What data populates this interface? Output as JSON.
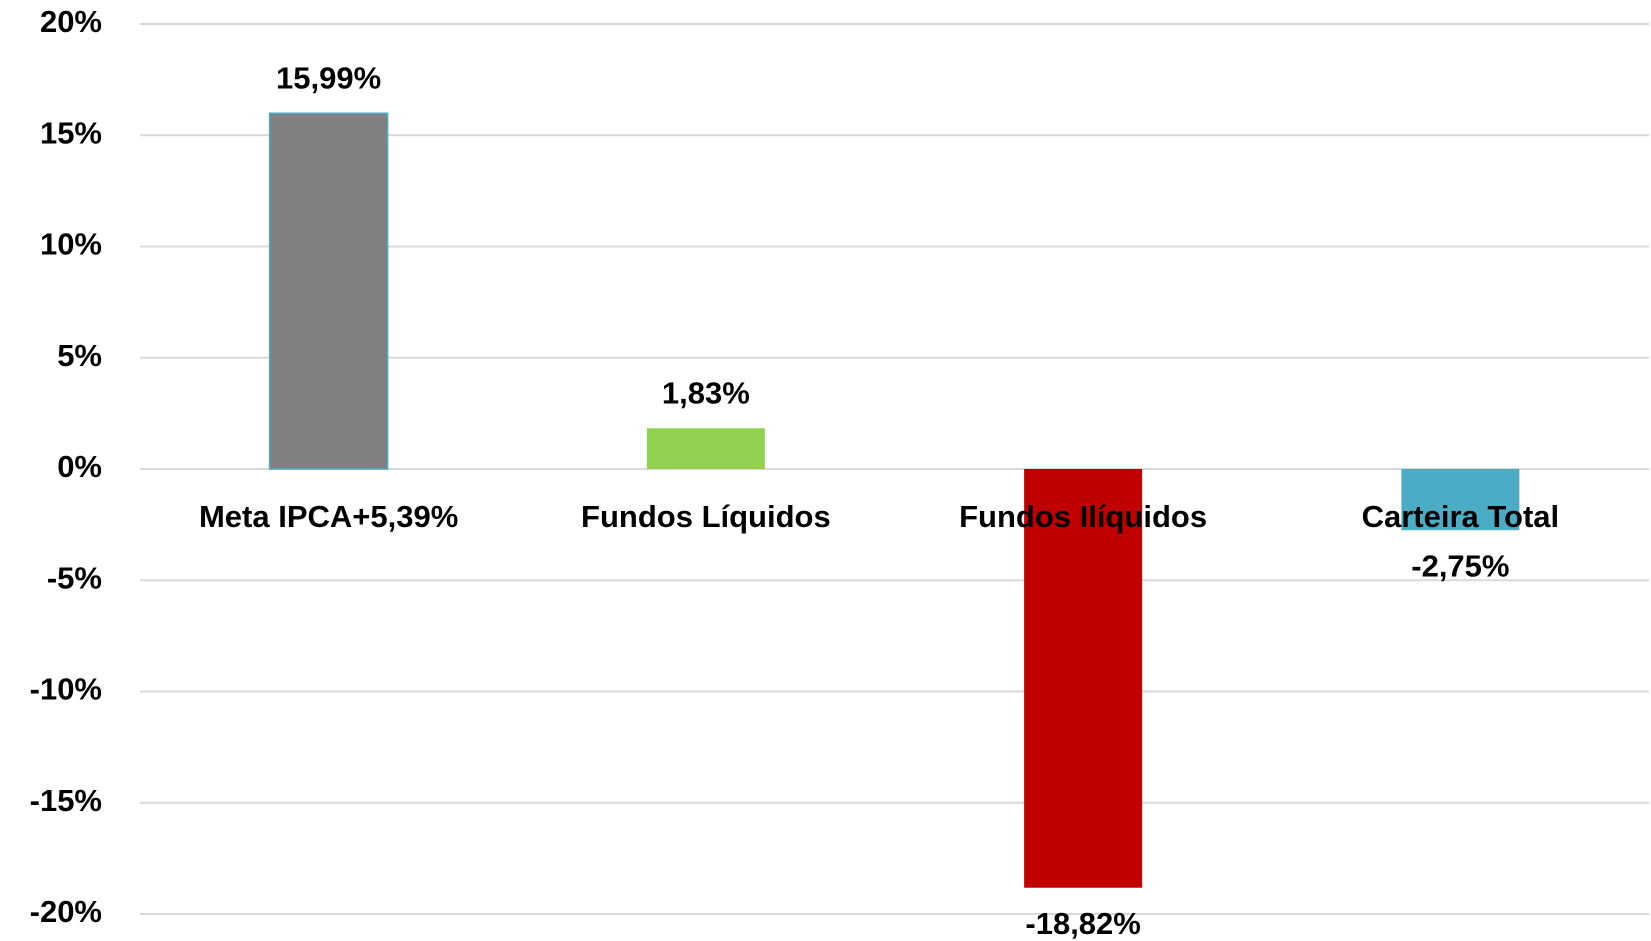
{
  "chart_data": {
    "type": "bar",
    "categories": [
      "Meta IPCA+5,39%",
      "Fundos Líquidos",
      "Fundos Ilíquidos",
      "Carteira Total"
    ],
    "values": [
      15.99,
      1.83,
      -18.82,
      -2.75
    ],
    "value_labels": [
      "15,99%",
      "1,83%",
      "-18,82%",
      "-2,75%"
    ],
    "colors": [
      "#808080",
      "#92d050",
      "#c00000",
      "#4bacc6"
    ],
    "ylim": [
      -20,
      20
    ],
    "yticks": [
      {
        "value": -20,
        "label": "-20%"
      },
      {
        "value": -15,
        "label": "-15%"
      },
      {
        "value": -10,
        "label": "-10%"
      },
      {
        "value": -5,
        "label": "-5%"
      },
      {
        "value": 0,
        "label": "0%"
      },
      {
        "value": 5,
        "label": "5%"
      },
      {
        "value": 10,
        "label": "10%"
      },
      {
        "value": 15,
        "label": "15%"
      },
      {
        "value": 20,
        "label": "20%"
      }
    ],
    "grid": true
  }
}
